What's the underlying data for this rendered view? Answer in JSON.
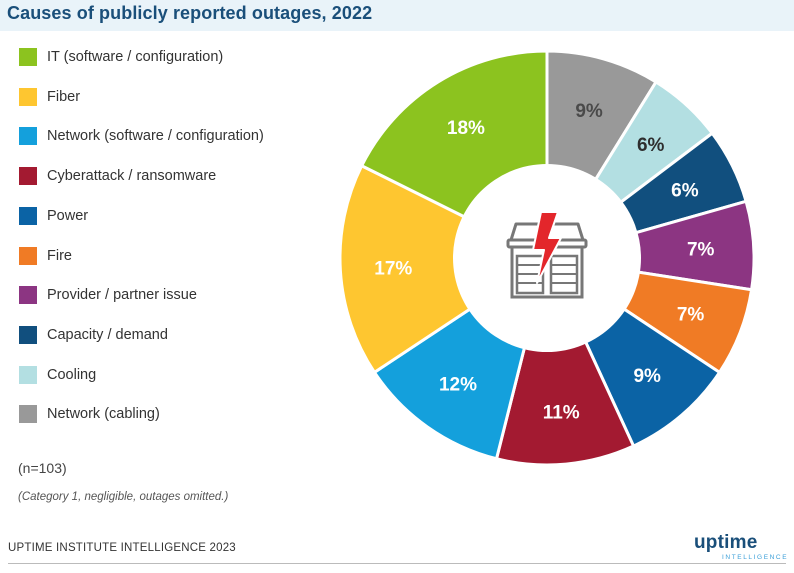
{
  "title": "Causes of publicly reported outages, 2022",
  "chart_data": {
    "type": "pie",
    "variant": "donut",
    "title": "Causes of publicly reported outages, 2022",
    "unit": "%",
    "categories": [
      "Network (cabling)",
      "Cooling",
      "Capacity / demand",
      "Provider / partner issue",
      "Fire",
      "Power",
      "Cyberattack / ransomware",
      "Network (software / configuration)",
      "Fiber",
      "IT (software / configuration)"
    ],
    "values": [
      9,
      6,
      6,
      7,
      7,
      9,
      11,
      12,
      17,
      18
    ],
    "value_labels": [
      "9%",
      "6%",
      "6%",
      "7%",
      "7%",
      "9%",
      "11%",
      "12%",
      "17%",
      "18%"
    ],
    "colors": [
      "#999999",
      "#b3dfe2",
      "#114f7e",
      "#8c3582",
      "#f07b25",
      "#0b63a5",
      "#a31a31",
      "#14a0dc",
      "#fec630",
      "#8cc31f"
    ],
    "label_colors": [
      "#4a4a4a",
      "#2e2e2e",
      "#ffffff",
      "#ffffff",
      "#ffffff",
      "#ffffff",
      "#ffffff",
      "#ffffff",
      "#ffffff",
      "#ffffff"
    ],
    "start_position": "12 o'clock",
    "direction": "clockwise",
    "center_icon": "data-center-outage-icon"
  },
  "legend": [
    {
      "label": "IT (software / configuration)",
      "color": "#8cc31f"
    },
    {
      "label": "Fiber",
      "color": "#fec630"
    },
    {
      "label": "Network (software / configuration)",
      "color": "#14a0dc"
    },
    {
      "label": "Cyberattack / ransomware",
      "color": "#a31a31"
    },
    {
      "label": "Power",
      "color": "#0b63a5"
    },
    {
      "label": "Fire",
      "color": "#f07b25"
    },
    {
      "label": "Provider / partner issue",
      "color": "#8c3582"
    },
    {
      "label": "Capacity / demand",
      "color": "#114f7e"
    },
    {
      "label": "Cooling",
      "color": "#b3dfe2"
    },
    {
      "label": "Network (cabling)",
      "color": "#999999"
    }
  ],
  "notes": {
    "sample": "(n=103)",
    "category": "(Category 1, negligible, outages omitted.)"
  },
  "footer": {
    "source": "UPTIME INSTITUTE INTELLIGENCE 2023",
    "logo_word": "uptime",
    "logo_sub": "INTELLIGENCE"
  }
}
